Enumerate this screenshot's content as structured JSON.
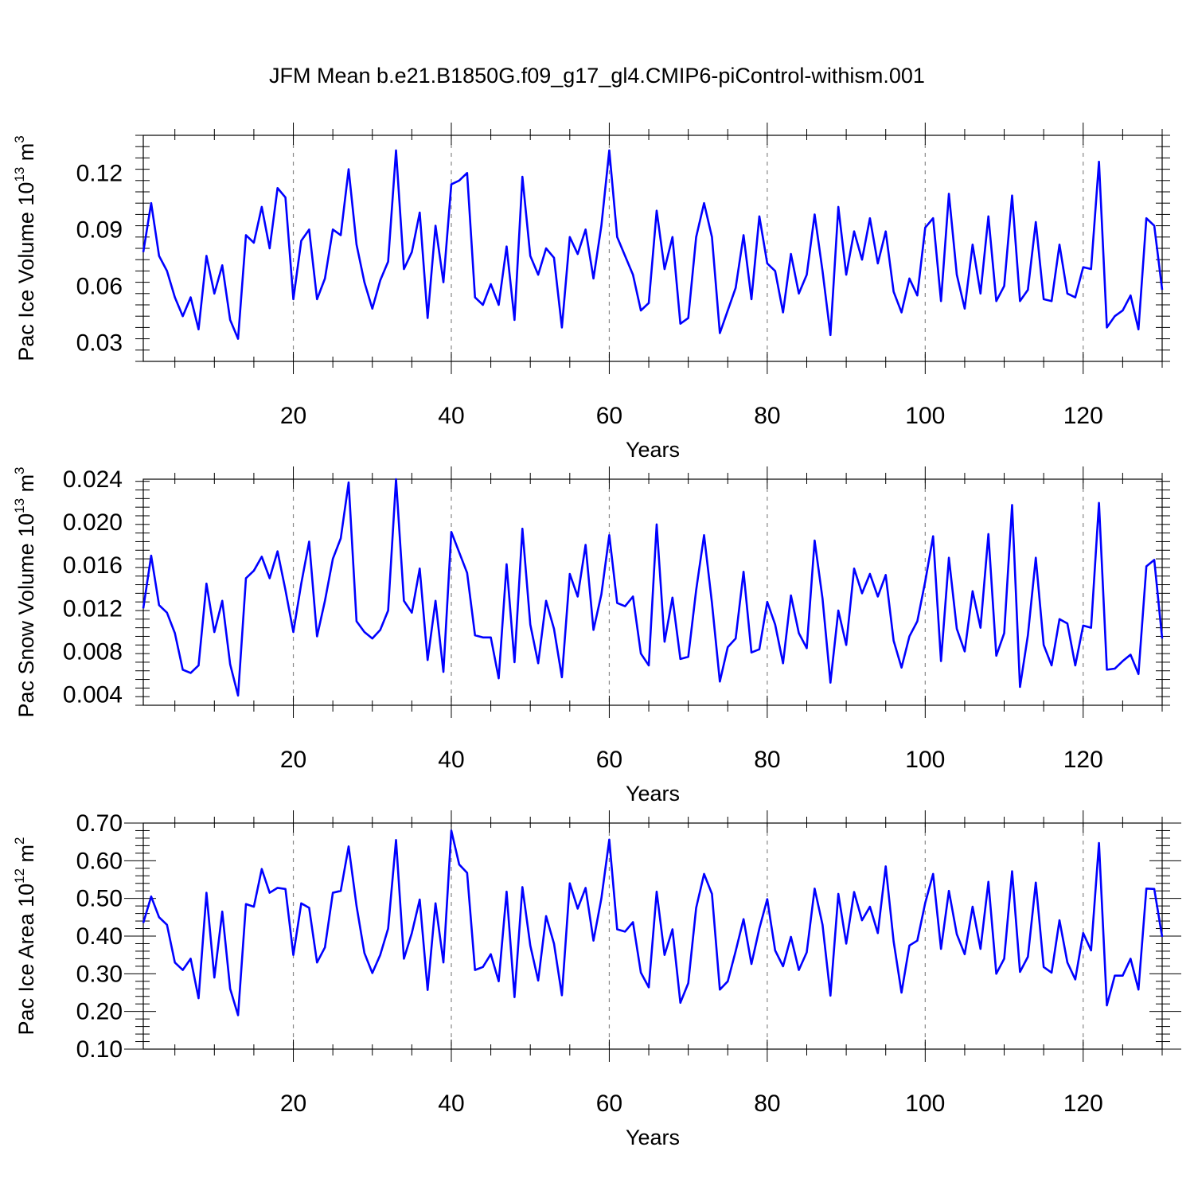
{
  "title": "JFM Mean b.e21.B1850G.f09_g17_gl4.CMIP6-piControl-withism.001",
  "colors": {
    "line": "#0000ff",
    "axis": "#000000",
    "grid": "#888888"
  },
  "chart_data": [
    {
      "type": "line",
      "ylabel": {
        "text": "Pac Ice Volume 10",
        "sup": "13",
        "unit": " m",
        "unit_sup": "3"
      },
      "xlabel": "Years",
      "xlim": [
        1,
        130
      ],
      "ylim": [
        0.02,
        0.14
      ],
      "xticks": [
        20,
        40,
        60,
        80,
        100,
        120
      ],
      "yticks": [
        0.03,
        0.06,
        0.09,
        0.12
      ],
      "ytick_labels": [
        "0.03",
        "0.06",
        "0.09",
        "0.12"
      ],
      "grid": "vertical-dashed",
      "x_start": 1,
      "values": [
        0.078,
        0.104,
        0.076,
        0.068,
        0.054,
        0.044,
        0.054,
        0.037,
        0.076,
        0.056,
        0.071,
        0.042,
        0.032,
        0.087,
        0.083,
        0.102,
        0.08,
        0.112,
        0.107,
        0.053,
        0.084,
        0.09,
        0.053,
        0.064,
        0.09,
        0.087,
        0.122,
        0.082,
        0.062,
        0.048,
        0.063,
        0.073,
        0.132,
        0.069,
        0.078,
        0.099,
        0.043,
        0.092,
        0.062,
        0.114,
        0.116,
        0.12,
        0.054,
        0.05,
        0.061,
        0.05,
        0.081,
        0.042,
        0.118,
        0.076,
        0.066,
        0.08,
        0.075,
        0.038,
        0.086,
        0.077,
        0.09,
        0.064,
        0.092,
        0.132,
        0.086,
        0.076,
        0.066,
        0.047,
        0.051,
        0.1,
        0.069,
        0.086,
        0.04,
        0.043,
        0.086,
        0.104,
        0.086,
        0.035,
        0.047,
        0.059,
        0.087,
        0.053,
        0.097,
        0.072,
        0.068,
        0.046,
        0.077,
        0.056,
        0.066,
        0.098,
        0.068,
        0.034,
        0.102,
        0.066,
        0.089,
        0.074,
        0.096,
        0.072,
        0.089,
        0.057,
        0.046,
        0.064,
        0.055,
        0.091,
        0.096,
        0.052,
        0.109,
        0.066,
        0.048,
        0.082,
        0.056,
        0.097,
        0.052,
        0.06,
        0.108,
        0.052,
        0.058,
        0.094,
        0.053,
        0.052,
        0.082,
        0.056,
        0.054,
        0.07,
        0.069,
        0.126,
        0.038,
        0.044,
        0.047,
        0.055,
        0.037,
        0.096,
        0.092,
        0.058
      ]
    },
    {
      "type": "line",
      "ylabel": {
        "text": "Pac Snow Volume 10",
        "sup": "13",
        "unit": " m",
        "unit_sup": "3"
      },
      "xlabel": "Years",
      "xlim": [
        1,
        130
      ],
      "ylim": [
        0.003,
        0.024
      ],
      "xticks": [
        20,
        40,
        60,
        80,
        100,
        120
      ],
      "yticks": [
        0.004,
        0.008,
        0.012,
        0.016,
        0.02,
        0.024
      ],
      "ytick_labels": [
        "0.004",
        "0.008",
        "0.012",
        "0.016",
        "0.020",
        "0.024"
      ],
      "grid": "vertical-dashed",
      "x_start": 1,
      "values": [
        0.012,
        0.0169,
        0.0123,
        0.0116,
        0.0097,
        0.0063,
        0.006,
        0.0067,
        0.0143,
        0.0098,
        0.0127,
        0.0068,
        0.0039,
        0.0148,
        0.0155,
        0.0168,
        0.0148,
        0.0173,
        0.0137,
        0.0098,
        0.0143,
        0.0182,
        0.0094,
        0.0127,
        0.0166,
        0.0185,
        0.0237,
        0.0108,
        0.0098,
        0.0092,
        0.01,
        0.0118,
        0.024,
        0.0127,
        0.0116,
        0.0157,
        0.0072,
        0.0127,
        0.0061,
        0.0191,
        0.0172,
        0.0153,
        0.0095,
        0.0093,
        0.0093,
        0.0055,
        0.0161,
        0.007,
        0.0194,
        0.0105,
        0.0069,
        0.0127,
        0.0101,
        0.0056,
        0.0152,
        0.0131,
        0.0179,
        0.01,
        0.0133,
        0.0188,
        0.0125,
        0.0122,
        0.0131,
        0.0078,
        0.0067,
        0.0198,
        0.0089,
        0.013,
        0.0073,
        0.0075,
        0.0137,
        0.0188,
        0.0125,
        0.0052,
        0.0084,
        0.0092,
        0.0154,
        0.0079,
        0.0082,
        0.0126,
        0.0105,
        0.0069,
        0.0132,
        0.0097,
        0.0083,
        0.0183,
        0.0129,
        0.0051,
        0.0118,
        0.0086,
        0.0157,
        0.0134,
        0.0152,
        0.0131,
        0.0151,
        0.009,
        0.0065,
        0.0094,
        0.0108,
        0.0145,
        0.0187,
        0.0071,
        0.0167,
        0.0101,
        0.008,
        0.0136,
        0.0102,
        0.0189,
        0.0076,
        0.0097,
        0.0216,
        0.0047,
        0.0095,
        0.0167,
        0.0086,
        0.0067,
        0.011,
        0.0106,
        0.0067,
        0.0104,
        0.0102,
        0.0218,
        0.0063,
        0.0064,
        0.0071,
        0.0077,
        0.0059,
        0.0159,
        0.0165,
        0.0092
      ]
    },
    {
      "type": "line",
      "ylabel": {
        "text": "Pac Ice Area 10",
        "sup": "12",
        "unit": " m",
        "unit_sup": "2"
      },
      "xlabel": "Years",
      "xlim": [
        1,
        130
      ],
      "ylim": [
        0.1,
        0.7
      ],
      "xticks": [
        20,
        40,
        60,
        80,
        100,
        120
      ],
      "yticks": [
        0.1,
        0.2,
        0.3,
        0.4,
        0.5,
        0.6,
        0.7
      ],
      "ytick_labels": [
        "0.10",
        "0.20",
        "0.30",
        "0.40",
        "0.50",
        "0.60",
        "0.70"
      ],
      "grid": "vertical-dashed",
      "x_start": 1,
      "values": [
        0.435,
        0.505,
        0.45,
        0.43,
        0.33,
        0.31,
        0.34,
        0.235,
        0.515,
        0.29,
        0.465,
        0.26,
        0.19,
        0.485,
        0.478,
        0.578,
        0.515,
        0.528,
        0.525,
        0.35,
        0.487,
        0.475,
        0.33,
        0.37,
        0.515,
        0.52,
        0.638,
        0.48,
        0.355,
        0.302,
        0.35,
        0.42,
        0.655,
        0.34,
        0.408,
        0.497,
        0.257,
        0.487,
        0.33,
        0.68,
        0.59,
        0.568,
        0.31,
        0.318,
        0.352,
        0.28,
        0.518,
        0.238,
        0.53,
        0.375,
        0.282,
        0.453,
        0.38,
        0.243,
        0.54,
        0.473,
        0.528,
        0.388,
        0.5,
        0.656,
        0.418,
        0.412,
        0.437,
        0.303,
        0.264,
        0.518,
        0.35,
        0.418,
        0.223,
        0.275,
        0.475,
        0.565,
        0.512,
        0.258,
        0.28,
        0.36,
        0.445,
        0.326,
        0.42,
        0.498,
        0.362,
        0.32,
        0.398,
        0.31,
        0.357,
        0.526,
        0.43,
        0.242,
        0.512,
        0.38,
        0.517,
        0.442,
        0.478,
        0.408,
        0.585,
        0.386,
        0.25,
        0.375,
        0.388,
        0.488,
        0.565,
        0.366,
        0.52,
        0.405,
        0.352,
        0.478,
        0.366,
        0.544,
        0.3,
        0.34,
        0.572,
        0.305,
        0.345,
        0.542,
        0.318,
        0.303,
        0.442,
        0.33,
        0.285,
        0.408,
        0.362,
        0.647,
        0.216,
        0.295,
        0.295,
        0.34,
        0.258,
        0.526,
        0.525,
        0.398
      ]
    }
  ]
}
